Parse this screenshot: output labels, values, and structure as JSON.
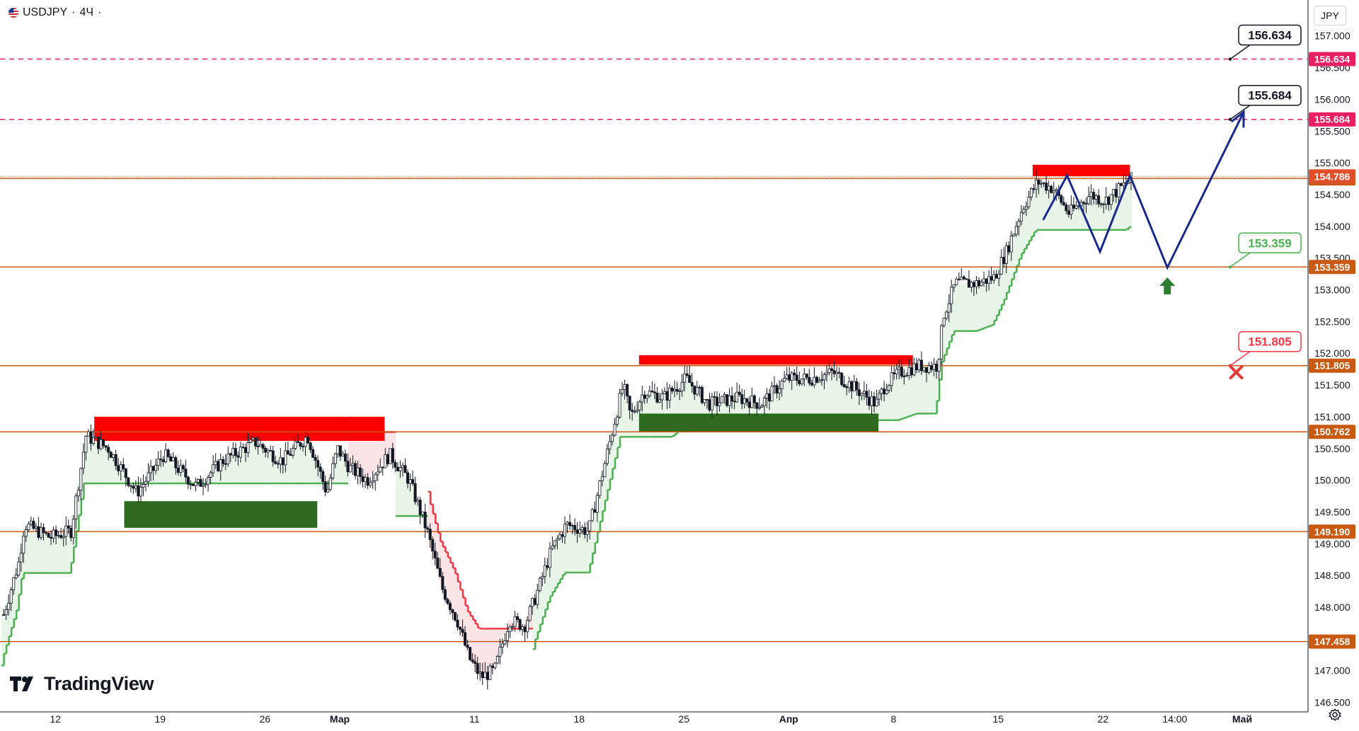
{
  "header": {
    "symbol": "USDJPY",
    "separator1": " · ",
    "timeframe": "4Ч",
    "separator2": " ·",
    "currency": "JPY"
  },
  "branding": {
    "logo_text": "TradingView",
    "logo_icon": "tradingview-logo-icon"
  },
  "icons": {
    "settings": "settings-icon",
    "flag": "us-jp-flag-icon"
  },
  "colors": {
    "up": "#26a69a",
    "down": "#ef5350",
    "trail_up": "#4caf50",
    "trail_down": "#f23645",
    "fill_up": "#e8f5e9",
    "fill_down": "#fde5e7",
    "level": "#c85a12",
    "target": "#e91e63",
    "zone_red": "#ff0000",
    "zone_green": "#2e6b1f",
    "path": "#1a2a8c",
    "entry_arrow": "#2e7d32",
    "stop_cross": "#e53935"
  },
  "chart_data": {
    "type": "candlestick",
    "instrument": "USDJPY",
    "timeframe": "4Ч",
    "ylim": [
      146.3,
      157.3
    ],
    "y_ticks": [
      "146.500",
      "147.000",
      "147.500",
      "148.000",
      "148.500",
      "149.000",
      "149.500",
      "150.000",
      "150.500",
      "151.000",
      "151.500",
      "152.000",
      "152.500",
      "153.000",
      "153.500",
      "154.000",
      "154.500",
      "155.000",
      "155.500",
      "156.000",
      "156.500",
      "157.000"
    ],
    "x_labels": [
      {
        "label": "12",
        "t": 0.0
      },
      {
        "label": "19",
        "t": 7.0
      },
      {
        "label": "26",
        "t": 14.0
      },
      {
        "label": "Мар",
        "t": 19.0
      },
      {
        "label": "11",
        "t": 28.0
      },
      {
        "label": "18",
        "t": 35.0
      },
      {
        "label": "25",
        "t": 42.0
      },
      {
        "label": "Апр",
        "t": 49.0
      },
      {
        "label": "8",
        "t": 56.0
      },
      {
        "label": "15",
        "t": 63.0
      },
      {
        "label": "22",
        "t": 70.0
      },
      {
        "label": "14:00",
        "t": 74.8
      },
      {
        "label": "Май",
        "t": 79.3
      }
    ],
    "x_range": [
      -3.7,
      83.7
    ],
    "price_path": [
      [
        -3.7,
        147.8
      ],
      [
        -2.6,
        148.7
      ],
      [
        -2.2,
        149.3
      ],
      [
        -0.5,
        149.1
      ],
      [
        0.9,
        149.2
      ],
      [
        1.9,
        150.7
      ],
      [
        3.4,
        150.5
      ],
      [
        5.3,
        149.8
      ],
      [
        7.1,
        150.4
      ],
      [
        9.3,
        149.9
      ],
      [
        11.0,
        150.3
      ],
      [
        13.2,
        150.6
      ],
      [
        15.0,
        150.3
      ],
      [
        16.7,
        150.7
      ],
      [
        18.0,
        149.8
      ],
      [
        18.7,
        150.5
      ],
      [
        19.5,
        150.2
      ],
      [
        20.7,
        150.0
      ],
      [
        22.2,
        150.4
      ],
      [
        23.5,
        150.0
      ],
      [
        24.7,
        149.2
      ],
      [
        25.7,
        148.3
      ],
      [
        26.7,
        147.8
      ],
      [
        27.5,
        147.2
      ],
      [
        28.3,
        146.9
      ],
      [
        29.2,
        147.0
      ],
      [
        30.2,
        147.8
      ],
      [
        31.2,
        147.7
      ],
      [
        32.0,
        148.2
      ],
      [
        33.0,
        148.9
      ],
      [
        34.0,
        149.3
      ],
      [
        35.5,
        149.2
      ],
      [
        36.0,
        149.7
      ],
      [
        37.0,
        150.7
      ],
      [
        37.8,
        151.5
      ],
      [
        38.3,
        151.0
      ],
      [
        39.2,
        151.4
      ],
      [
        40.5,
        151.3
      ],
      [
        42.0,
        151.6
      ],
      [
        43.5,
        151.2
      ],
      [
        45.5,
        151.3
      ],
      [
        47.0,
        151.2
      ],
      [
        48.7,
        151.6
      ],
      [
        50.3,
        151.6
      ],
      [
        51.8,
        151.7
      ],
      [
        53.0,
        151.5
      ],
      [
        54.7,
        151.2
      ],
      [
        55.3,
        151.5
      ],
      [
        56.3,
        151.7
      ],
      [
        57.5,
        151.8
      ],
      [
        58.8,
        151.8
      ],
      [
        59.2,
        152.6
      ],
      [
        60.0,
        153.1
      ],
      [
        61.5,
        153.1
      ],
      [
        62.6,
        153.2
      ],
      [
        63.4,
        153.6
      ],
      [
        64.5,
        154.3
      ],
      [
        65.5,
        154.7
      ],
      [
        66.5,
        154.6
      ],
      [
        67.6,
        154.2
      ],
      [
        69.0,
        154.5
      ],
      [
        70.0,
        154.4
      ],
      [
        71.0,
        154.6
      ],
      [
        71.8,
        154.75
      ]
    ],
    "resistance_zones": [
      {
        "t0": 2.6,
        "t1": 22.0,
        "low": 150.62,
        "high": 151.0
      },
      {
        "t0": 39.0,
        "t1": 57.3,
        "low": 151.82,
        "high": 151.97
      },
      {
        "t0": 65.3,
        "t1": 71.8,
        "low": 154.79,
        "high": 154.97
      }
    ],
    "support_zones": [
      {
        "t0": 4.6,
        "t1": 17.5,
        "low": 149.25,
        "high": 149.67
      },
      {
        "t0": 39.0,
        "t1": 55.0,
        "low": 150.76,
        "high": 151.05
      }
    ],
    "horizontal_levels": [
      {
        "price": 147.458,
        "label": "147.458"
      },
      {
        "price": 149.19,
        "label": "149.190"
      },
      {
        "price": 150.762,
        "label": "150.762"
      },
      {
        "price": 151.805,
        "label": "151.805"
      },
      {
        "price": 153.359,
        "label": "153.359"
      },
      {
        "price": 154.754,
        "label": "154.754"
      }
    ],
    "current_price": {
      "price": 154.786,
      "label": "154.786"
    },
    "target_levels": [
      {
        "price": 156.634,
        "label": "156.634"
      },
      {
        "price": 155.684,
        "label": "155.684"
      }
    ],
    "callouts": [
      {
        "label": "156.634",
        "price": 156.634,
        "style": "target"
      },
      {
        "label": "155.684",
        "price": 155.684,
        "style": "target"
      },
      {
        "label": "153.359",
        "price": 153.359,
        "style": "entry"
      },
      {
        "label": "151.805",
        "price": 151.805,
        "style": "stop"
      }
    ],
    "projection_path": [
      [
        66.0,
        154.1
      ],
      [
        67.6,
        154.8
      ],
      [
        69.8,
        153.6
      ],
      [
        71.8,
        154.8
      ],
      [
        74.3,
        153.35
      ],
      [
        79.4,
        155.8
      ]
    ],
    "entry_arrow": {
      "t": 74.3,
      "price": 153.15
    },
    "stop_marker": {
      "t": 78.9,
      "price": 151.7
    }
  }
}
